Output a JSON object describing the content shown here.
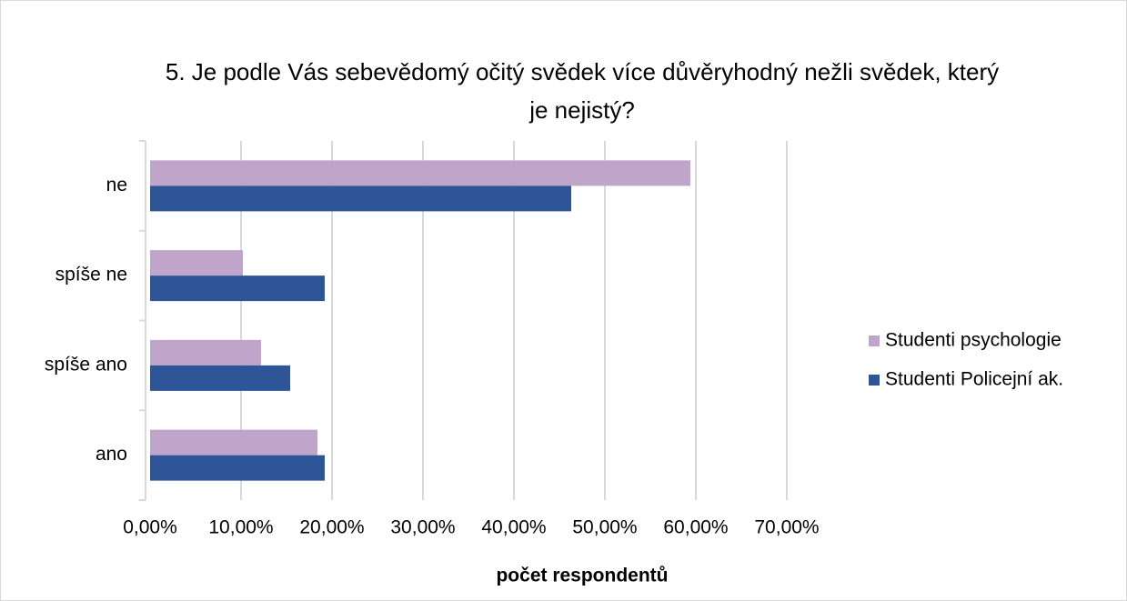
{
  "chart_data": {
    "type": "hbar",
    "title": "5. Je podle Vás sebevědomý očitý svědek více důvěryhodný nežli svědek, který je nejistý?",
    "categories": [
      "ne",
      "spíše ne",
      "spíše ano",
      "ano"
    ],
    "series": [
      {
        "name": "Studenti psychologie",
        "color": "#bfa5c9",
        "values": [
          59.4,
          10.2,
          12.2,
          18.4
        ]
      },
      {
        "name": "Studenti Policejní ak.",
        "color": "#2e5597",
        "values": [
          46.3,
          19.2,
          15.4,
          19.2
        ]
      }
    ],
    "xlabel": "počet respondentů",
    "xlim": [
      0,
      70
    ],
    "xticks": [
      {
        "value": 0,
        "label": "0,00%"
      },
      {
        "value": 10,
        "label": "10,00%"
      },
      {
        "value": 20,
        "label": "20,00%"
      },
      {
        "value": 30,
        "label": "30,00%"
      },
      {
        "value": 40,
        "label": "40,00%"
      },
      {
        "value": 50,
        "label": "50,00%"
      },
      {
        "value": 60,
        "label": "60,00%"
      },
      {
        "value": 70,
        "label": "70,00%"
      }
    ],
    "grid": true,
    "legend": "right"
  }
}
